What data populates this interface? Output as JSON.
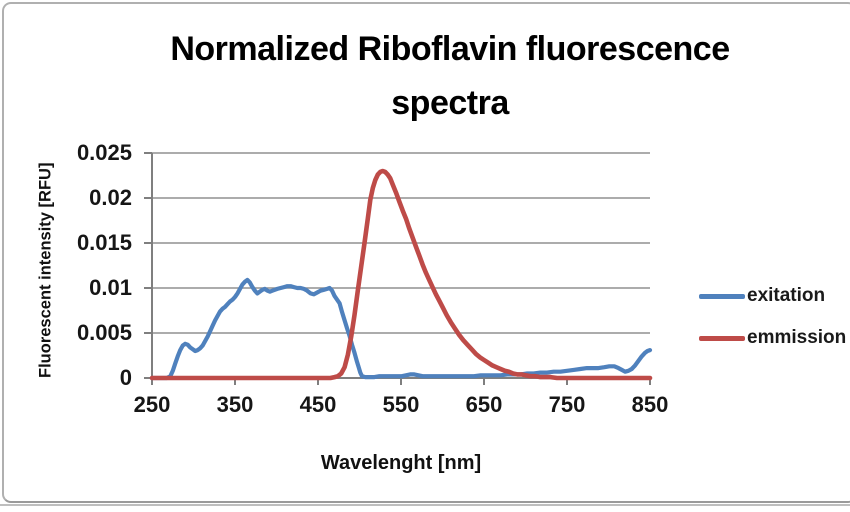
{
  "chart": {
    "frame_border_color": "#b0b0b0"
  },
  "colors": {
    "excitation": "#4F81BD",
    "emission": "#BE4B48",
    "gridline": "#909090",
    "axis": "#7F7F7F",
    "text": "#1A1A1A",
    "title": "#000000"
  },
  "chart_data": {
    "type": "line",
    "title": "Normalized Riboflavin fluorescence spectra",
    "title_lines": [
      "Normalized Riboflavin fluorescence",
      "spectra"
    ],
    "xlabel": "Wavelenght [nm]",
    "ylabel": "Fluorescent intensity [RFU]",
    "xlim": [
      250,
      850
    ],
    "ylim": [
      0,
      0.025
    ],
    "x_ticks": [
      250,
      350,
      450,
      550,
      650,
      750,
      850
    ],
    "x_tick_labels": [
      "250",
      "350",
      "450",
      "550",
      "650",
      "750",
      "850"
    ],
    "y_ticks": [
      0,
      0.005,
      0.01,
      0.015,
      0.02,
      0.025
    ],
    "y_tick_labels": [
      "0",
      "0.005",
      "0.01",
      "0.015",
      "0.02",
      "0.025"
    ],
    "grid": "horizontal-major",
    "legend_position": "right",
    "series": [
      {
        "name": "exitation",
        "color": "#4F81BD",
        "points": [
          [
            250,
            0
          ],
          [
            256,
            0
          ],
          [
            262,
            0
          ],
          [
            268,
            0
          ],
          [
            272,
            0.0002
          ],
          [
            275,
            0.0008
          ],
          [
            278,
            0.0016
          ],
          [
            281,
            0.0024
          ],
          [
            284,
            0.0031
          ],
          [
            287,
            0.0036
          ],
          [
            290,
            0.0038
          ],
          [
            293,
            0.0037
          ],
          [
            296,
            0.0034
          ],
          [
            299,
            0.0032
          ],
          [
            302,
            0.003
          ],
          [
            305,
            0.0031
          ],
          [
            308,
            0.0033
          ],
          [
            311,
            0.0036
          ],
          [
            314,
            0.0041
          ],
          [
            317,
            0.0046
          ],
          [
            320,
            0.0052
          ],
          [
            323,
            0.0058
          ],
          [
            326,
            0.0064
          ],
          [
            329,
            0.0069
          ],
          [
            332,
            0.0074
          ],
          [
            335,
            0.0077
          ],
          [
            338,
            0.0079
          ],
          [
            341,
            0.0082
          ],
          [
            344,
            0.0085
          ],
          [
            347,
            0.0087
          ],
          [
            350,
            0.009
          ],
          [
            353,
            0.0094
          ],
          [
            356,
            0.0099
          ],
          [
            359,
            0.0104
          ],
          [
            362,
            0.0107
          ],
          [
            365,
            0.0109
          ],
          [
            368,
            0.0106
          ],
          [
            371,
            0.0101
          ],
          [
            374,
            0.0097
          ],
          [
            377,
            0.0094
          ],
          [
            380,
            0.0096
          ],
          [
            383,
            0.0098
          ],
          [
            386,
            0.0099
          ],
          [
            389,
            0.0097
          ],
          [
            392,
            0.0096
          ],
          [
            395,
            0.0097
          ],
          [
            398,
            0.0098
          ],
          [
            401,
            0.0099
          ],
          [
            405,
            0.01
          ],
          [
            409,
            0.0101
          ],
          [
            413,
            0.0102
          ],
          [
            417,
            0.0102
          ],
          [
            421,
            0.0101
          ],
          [
            425,
            0.01
          ],
          [
            429,
            0.01
          ],
          [
            433,
            0.0099
          ],
          [
            437,
            0.0097
          ],
          [
            441,
            0.0094
          ],
          [
            445,
            0.0093
          ],
          [
            449,
            0.0095
          ],
          [
            453,
            0.0097
          ],
          [
            457,
            0.0098
          ],
          [
            461,
            0.0099
          ],
          [
            464,
            0.01
          ],
          [
            467,
            0.0097
          ],
          [
            470,
            0.0091
          ],
          [
            473,
            0.0087
          ],
          [
            476,
            0.0083
          ],
          [
            479,
            0.0073
          ],
          [
            482,
            0.0064
          ],
          [
            485,
            0.0055
          ],
          [
            488,
            0.0047
          ],
          [
            491,
            0.0037
          ],
          [
            494,
            0.0028
          ],
          [
            497,
            0.0018
          ],
          [
            499,
            0.0012
          ],
          [
            501,
            0.0006
          ],
          [
            503,
            0.0002
          ],
          [
            507,
            0.0001
          ],
          [
            512,
            0.0001
          ],
          [
            518,
            0.0001
          ],
          [
            524,
            0.0002
          ],
          [
            530,
            0.0002
          ],
          [
            537,
            0.0002
          ],
          [
            544,
            0.0002
          ],
          [
            551,
            0.0002
          ],
          [
            556,
            0.0003
          ],
          [
            561,
            0.0004
          ],
          [
            566,
            0.0004
          ],
          [
            571,
            0.0003
          ],
          [
            576,
            0.0002
          ],
          [
            582,
            0.0002
          ],
          [
            590,
            0.0002
          ],
          [
            598,
            0.0002
          ],
          [
            606,
            0.0002
          ],
          [
            614,
            0.0002
          ],
          [
            622,
            0.0002
          ],
          [
            630,
            0.0002
          ],
          [
            638,
            0.0002
          ],
          [
            646,
            0.0003
          ],
          [
            654,
            0.0003
          ],
          [
            662,
            0.0003
          ],
          [
            670,
            0.0003
          ],
          [
            678,
            0.0004
          ],
          [
            686,
            0.0004
          ],
          [
            694,
            0.0004
          ],
          [
            702,
            0.0005
          ],
          [
            710,
            0.0005
          ],
          [
            718,
            0.0006
          ],
          [
            726,
            0.0006
          ],
          [
            734,
            0.0007
          ],
          [
            742,
            0.0007
          ],
          [
            750,
            0.0008
          ],
          [
            758,
            0.0009
          ],
          [
            766,
            0.001
          ],
          [
            774,
            0.0011
          ],
          [
            781,
            0.0011
          ],
          [
            788,
            0.0011
          ],
          [
            795,
            0.0012
          ],
          [
            801,
            0.0013
          ],
          [
            807,
            0.0013
          ],
          [
            812,
            0.0011
          ],
          [
            816,
            0.0009
          ],
          [
            820,
            0.0007
          ],
          [
            824,
            0.0008
          ],
          [
            828,
            0.001
          ],
          [
            832,
            0.0014
          ],
          [
            836,
            0.0019
          ],
          [
            840,
            0.0024
          ],
          [
            844,
            0.0028
          ],
          [
            847,
            0.003
          ],
          [
            850,
            0.0031
          ]
        ]
      },
      {
        "name": "emmission",
        "color": "#BE4B48",
        "points": [
          [
            250,
            0
          ],
          [
            280,
            0
          ],
          [
            310,
            0
          ],
          [
            340,
            0
          ],
          [
            370,
            0
          ],
          [
            400,
            0
          ],
          [
            420,
            0
          ],
          [
            440,
            0
          ],
          [
            455,
            0
          ],
          [
            465,
            0
          ],
          [
            470,
            0.0001
          ],
          [
            474,
            0.0002
          ],
          [
            478,
            0.0005
          ],
          [
            482,
            0.0012
          ],
          [
            486,
            0.0026
          ],
          [
            490,
            0.0046
          ],
          [
            494,
            0.007
          ],
          [
            498,
            0.0097
          ],
          [
            502,
            0.0124
          ],
          [
            506,
            0.015
          ],
          [
            510,
            0.0177
          ],
          [
            513,
            0.0198
          ],
          [
            516,
            0.0211
          ],
          [
            519,
            0.022
          ],
          [
            522,
            0.0226
          ],
          [
            525,
            0.0229
          ],
          [
            528,
            0.023
          ],
          [
            531,
            0.0229
          ],
          [
            534,
            0.0226
          ],
          [
            537,
            0.0222
          ],
          [
            540,
            0.0215
          ],
          [
            544,
            0.0206
          ],
          [
            548,
            0.0196
          ],
          [
            552,
            0.0186
          ],
          [
            556,
            0.0177
          ],
          [
            560,
            0.0166
          ],
          [
            564,
            0.0156
          ],
          [
            568,
            0.0146
          ],
          [
            572,
            0.0136
          ],
          [
            576,
            0.0126
          ],
          [
            580,
            0.0117
          ],
          [
            584,
            0.0109
          ],
          [
            588,
            0.0101
          ],
          [
            592,
            0.0093
          ],
          [
            596,
            0.0086
          ],
          [
            600,
            0.0079
          ],
          [
            605,
            0.007
          ],
          [
            610,
            0.0062
          ],
          [
            615,
            0.0055
          ],
          [
            620,
            0.0048
          ],
          [
            625,
            0.0042
          ],
          [
            630,
            0.0037
          ],
          [
            635,
            0.0032
          ],
          [
            640,
            0.0027
          ],
          [
            645,
            0.0023
          ],
          [
            650,
            0.002
          ],
          [
            655,
            0.0017
          ],
          [
            660,
            0.0014
          ],
          [
            665,
            0.0012
          ],
          [
            670,
            0.001
          ],
          [
            675,
            0.0008
          ],
          [
            680,
            0.0007
          ],
          [
            685,
            0.0005
          ],
          [
            690,
            0.0004
          ],
          [
            695,
            0.0004
          ],
          [
            700,
            0.0003
          ],
          [
            706,
            0.0002
          ],
          [
            712,
            0.0002
          ],
          [
            718,
            0.0001
          ],
          [
            724,
            0.0001
          ],
          [
            730,
            0.0001
          ],
          [
            738,
            0
          ],
          [
            750,
            0
          ],
          [
            770,
            0
          ],
          [
            800,
            0
          ],
          [
            825,
            0
          ],
          [
            850,
            0
          ]
        ]
      }
    ]
  }
}
